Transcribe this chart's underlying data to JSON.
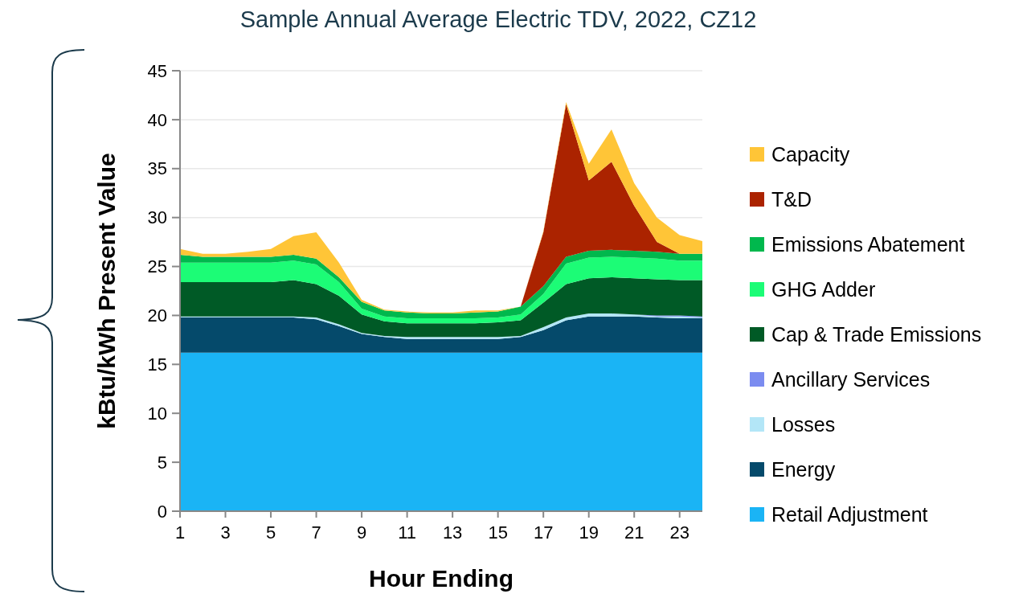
{
  "chart_data": {
    "type": "area",
    "stacked": true,
    "title": "Sample Annual Average Electric TDV, 2022, CZ12",
    "xlabel": "Hour Ending",
    "ylabel": "kBtu/kWh Present Value",
    "x": [
      1,
      2,
      3,
      4,
      5,
      6,
      7,
      8,
      9,
      10,
      11,
      12,
      13,
      14,
      15,
      16,
      17,
      18,
      19,
      20,
      21,
      22,
      23,
      24
    ],
    "xlim": [
      1,
      24
    ],
    "xticks": [
      1,
      3,
      5,
      7,
      9,
      11,
      13,
      15,
      17,
      19,
      21,
      23
    ],
    "ylim": [
      0,
      45
    ],
    "yticks": [
      0,
      5,
      10,
      15,
      20,
      25,
      30,
      35,
      40,
      45
    ],
    "grid": "y",
    "legend": "right",
    "series": [
      {
        "name": "Retail Adjustment",
        "color": "#1ab4f5",
        "values": [
          16.2,
          16.2,
          16.2,
          16.2,
          16.2,
          16.2,
          16.2,
          16.2,
          16.2,
          16.2,
          16.2,
          16.2,
          16.2,
          16.2,
          16.2,
          16.2,
          16.2,
          16.2,
          16.2,
          16.2,
          16.2,
          16.2,
          16.2,
          16.2
        ]
      },
      {
        "name": "Energy",
        "color": "#054a6b",
        "values": [
          3.6,
          3.6,
          3.6,
          3.6,
          3.6,
          3.6,
          3.4,
          2.7,
          1.9,
          1.6,
          1.4,
          1.4,
          1.4,
          1.4,
          1.4,
          1.6,
          2.3,
          3.3,
          3.7,
          3.7,
          3.7,
          3.6,
          3.5,
          3.5
        ]
      },
      {
        "name": "Losses",
        "color": "#b3e6f7",
        "values": [
          0.1,
          0.1,
          0.1,
          0.1,
          0.1,
          0.1,
          0.2,
          0.2,
          0.1,
          0.1,
          0.2,
          0.2,
          0.2,
          0.2,
          0.2,
          0.1,
          0.3,
          0.3,
          0.3,
          0.3,
          0.2,
          0.1,
          0.2,
          0.1
        ]
      },
      {
        "name": "Ancillary Services",
        "color": "#7b8cf0",
        "values": [
          0,
          0,
          0,
          0,
          0,
          0,
          0,
          0,
          0,
          0,
          0,
          0,
          0,
          0,
          0,
          0,
          0,
          0,
          0,
          0,
          0,
          0.1,
          0.1,
          0.1
        ]
      },
      {
        "name": "Cap & Trade Emissions",
        "color": "#005a26",
        "values": [
          3.5,
          3.5,
          3.5,
          3.5,
          3.5,
          3.7,
          3.4,
          2.9,
          1.9,
          1.5,
          1.4,
          1.4,
          1.4,
          1.4,
          1.5,
          1.6,
          2.5,
          3.4,
          3.6,
          3.7,
          3.7,
          3.7,
          3.6,
          3.7
        ]
      },
      {
        "name": "GHG Adder",
        "color": "#1cfc76",
        "values": [
          2.0,
          2.0,
          2.0,
          2.0,
          2.0,
          2.0,
          2.0,
          1.4,
          0.6,
          0.5,
          0.5,
          0.5,
          0.5,
          0.5,
          0.5,
          0.6,
          0.9,
          2.1,
          2.1,
          2.1,
          2.1,
          2.1,
          2.0,
          2.0
        ]
      },
      {
        "name": "Emissions Abatement",
        "color": "#00b84d",
        "values": [
          0.8,
          0.6,
          0.6,
          0.6,
          0.6,
          0.6,
          0.6,
          0.5,
          0.7,
          0.6,
          0.6,
          0.5,
          0.5,
          0.6,
          0.6,
          0.8,
          0.8,
          0.7,
          0.7,
          0.7,
          0.7,
          0.7,
          0.7,
          0.7
        ]
      },
      {
        "name": "T&D",
        "color": "#ab2300",
        "values": [
          0,
          0,
          0,
          0,
          0,
          0,
          0,
          0,
          0,
          0,
          0,
          0,
          0,
          0,
          0,
          0,
          5.5,
          15.6,
          7.2,
          9.0,
          4.6,
          1.0,
          0,
          0
        ]
      },
      {
        "name": "Capacity",
        "color": "#ffc537",
        "values": [
          0.6,
          0.3,
          0.3,
          0.5,
          0.8,
          1.9,
          2.7,
          1.5,
          0.2,
          0.1,
          0.1,
          0.1,
          0.1,
          0.2,
          0.1,
          0,
          0.1,
          0.2,
          1.7,
          3.3,
          2.3,
          2.5,
          1.9,
          1.3
        ]
      }
    ]
  }
}
